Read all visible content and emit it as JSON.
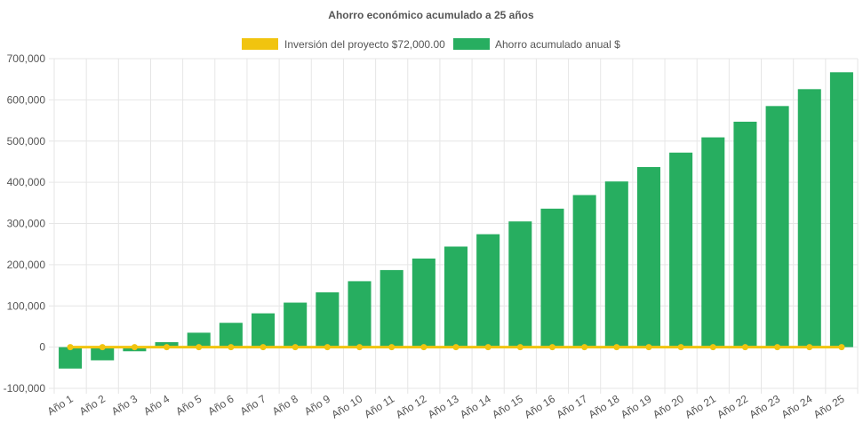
{
  "chart_data": {
    "type": "bar",
    "title": "Ahorro económico acumulado a 25 años",
    "xlabel": "",
    "ylabel": "",
    "legend_position": "top",
    "grid": true,
    "ylim": [
      -100000,
      700000
    ],
    "y_ticks": [
      "700,000",
      "600,000",
      "500,000",
      "400,000",
      "300,000",
      "200,000",
      "100,000",
      "0",
      "-100,000"
    ],
    "categories": [
      "Año 1",
      "Año 2",
      "Año 3",
      "Año 4",
      "Año 5",
      "Año 6",
      "Año 7",
      "Año 8",
      "Año 9",
      "Año 10",
      "Año 11",
      "Año 12",
      "Año 13",
      "Año 14",
      "Año 15",
      "Año 16",
      "Año 17",
      "Año 18",
      "Año 19",
      "Año 20",
      "Año 21",
      "Año 22",
      "Año 23",
      "Año 24",
      "Año 25"
    ],
    "series": [
      {
        "name": "Inversión del proyecto $72,000.00",
        "type": "line",
        "color": "#f1c40f",
        "values": [
          0,
          0,
          0,
          0,
          0,
          0,
          0,
          0,
          0,
          0,
          0,
          0,
          0,
          0,
          0,
          0,
          0,
          0,
          0,
          0,
          0,
          0,
          0,
          0,
          0
        ]
      },
      {
        "name": "Ahorro acumulado anual $",
        "type": "bar",
        "color": "#27ae60",
        "values": [
          -52000,
          -32000,
          -10000,
          12000,
          35000,
          59000,
          82000,
          108000,
          133000,
          160000,
          187000,
          215000,
          244000,
          274000,
          305000,
          336000,
          369000,
          402000,
          437000,
          472000,
          509000,
          547000,
          585000,
          626000,
          667000
        ]
      }
    ]
  }
}
